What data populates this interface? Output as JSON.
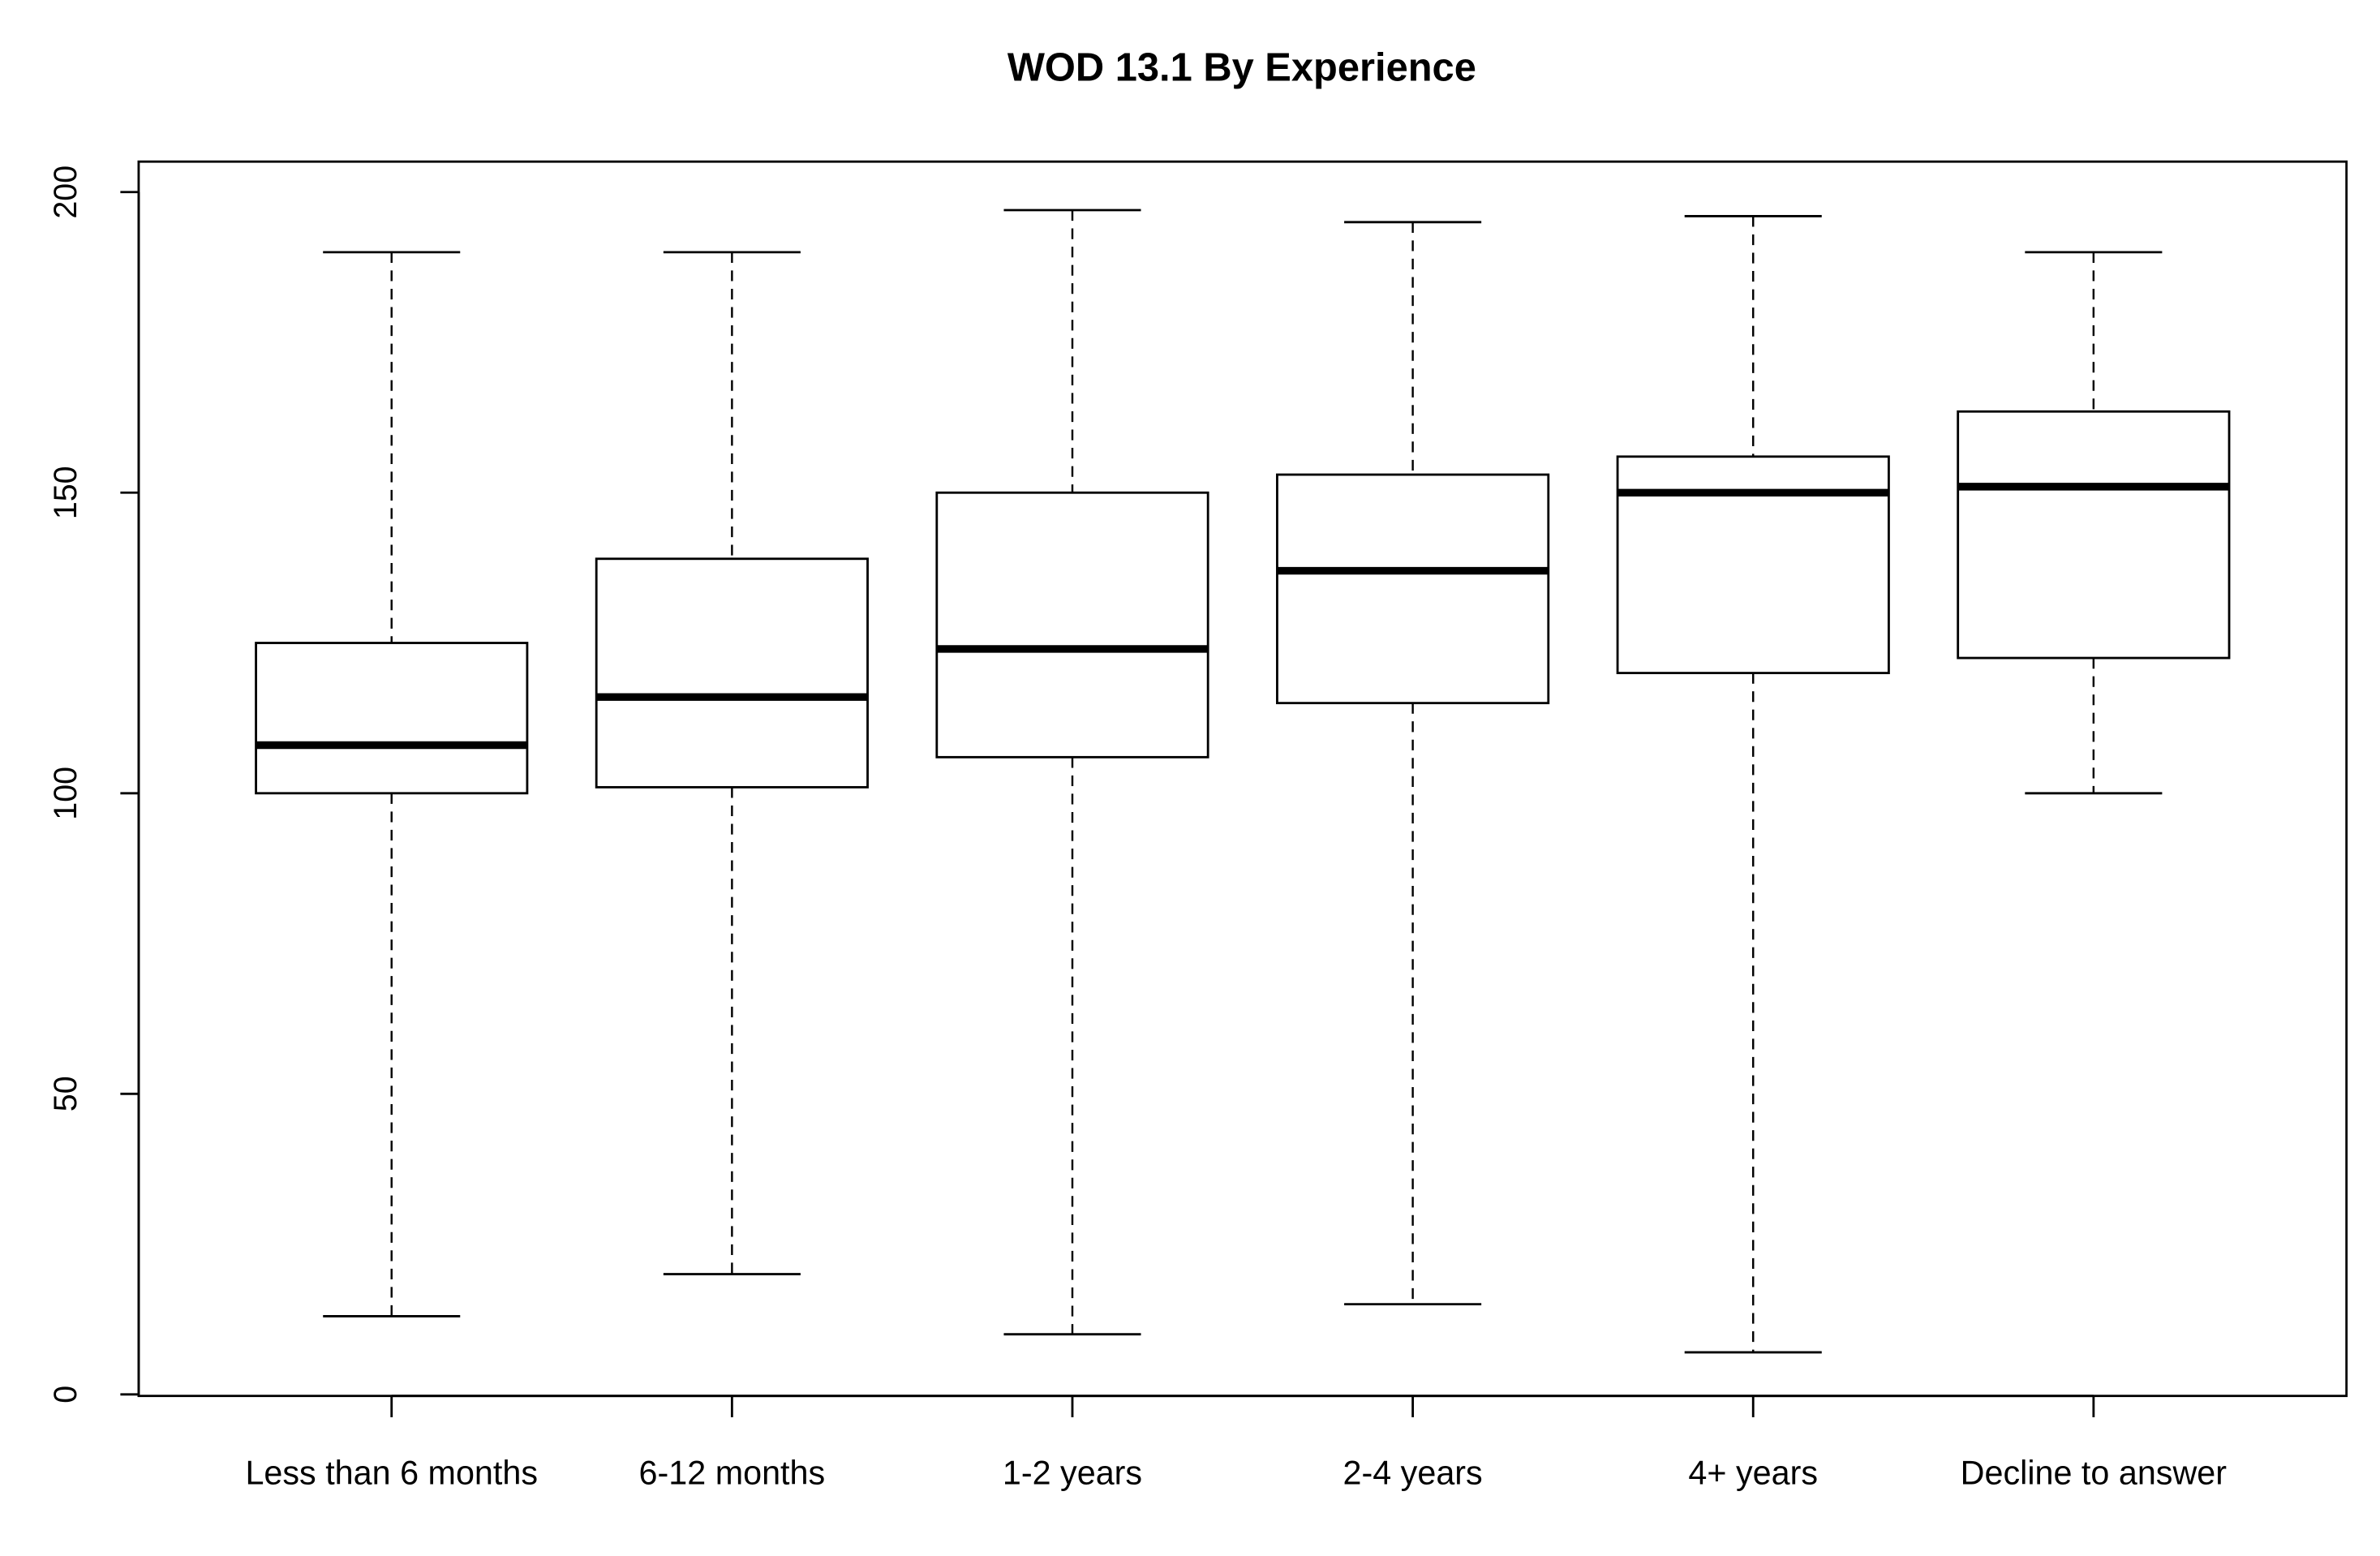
{
  "chart_data": {
    "type": "boxplot",
    "title": "WOD 13.1 By Experience",
    "xlabel": "",
    "ylabel": "",
    "ylim": [
      0,
      205
    ],
    "yticks": [
      0,
      50,
      100,
      150,
      200
    ],
    "grid": false,
    "categories": [
      "Less than 6 months",
      "6-12 months",
      "1-2 years",
      "2-4 years",
      "4+ years",
      "Decline to answer"
    ],
    "boxes": [
      {
        "min": 13,
        "q1": 100,
        "median": 108,
        "q3": 125,
        "max": 190
      },
      {
        "min": 20,
        "q1": 101,
        "median": 116,
        "q3": 139,
        "max": 190
      },
      {
        "min": 10,
        "q1": 106,
        "median": 124,
        "q3": 150,
        "max": 197
      },
      {
        "min": 15,
        "q1": 115,
        "median": 137,
        "q3": 153,
        "max": 195
      },
      {
        "min": 7,
        "q1": 120,
        "median": 150,
        "q3": 156,
        "max": 196
      },
      {
        "min": 100,
        "q1": 122.5,
        "median": 151,
        "q3": 163.5,
        "max": 190
      }
    ]
  }
}
